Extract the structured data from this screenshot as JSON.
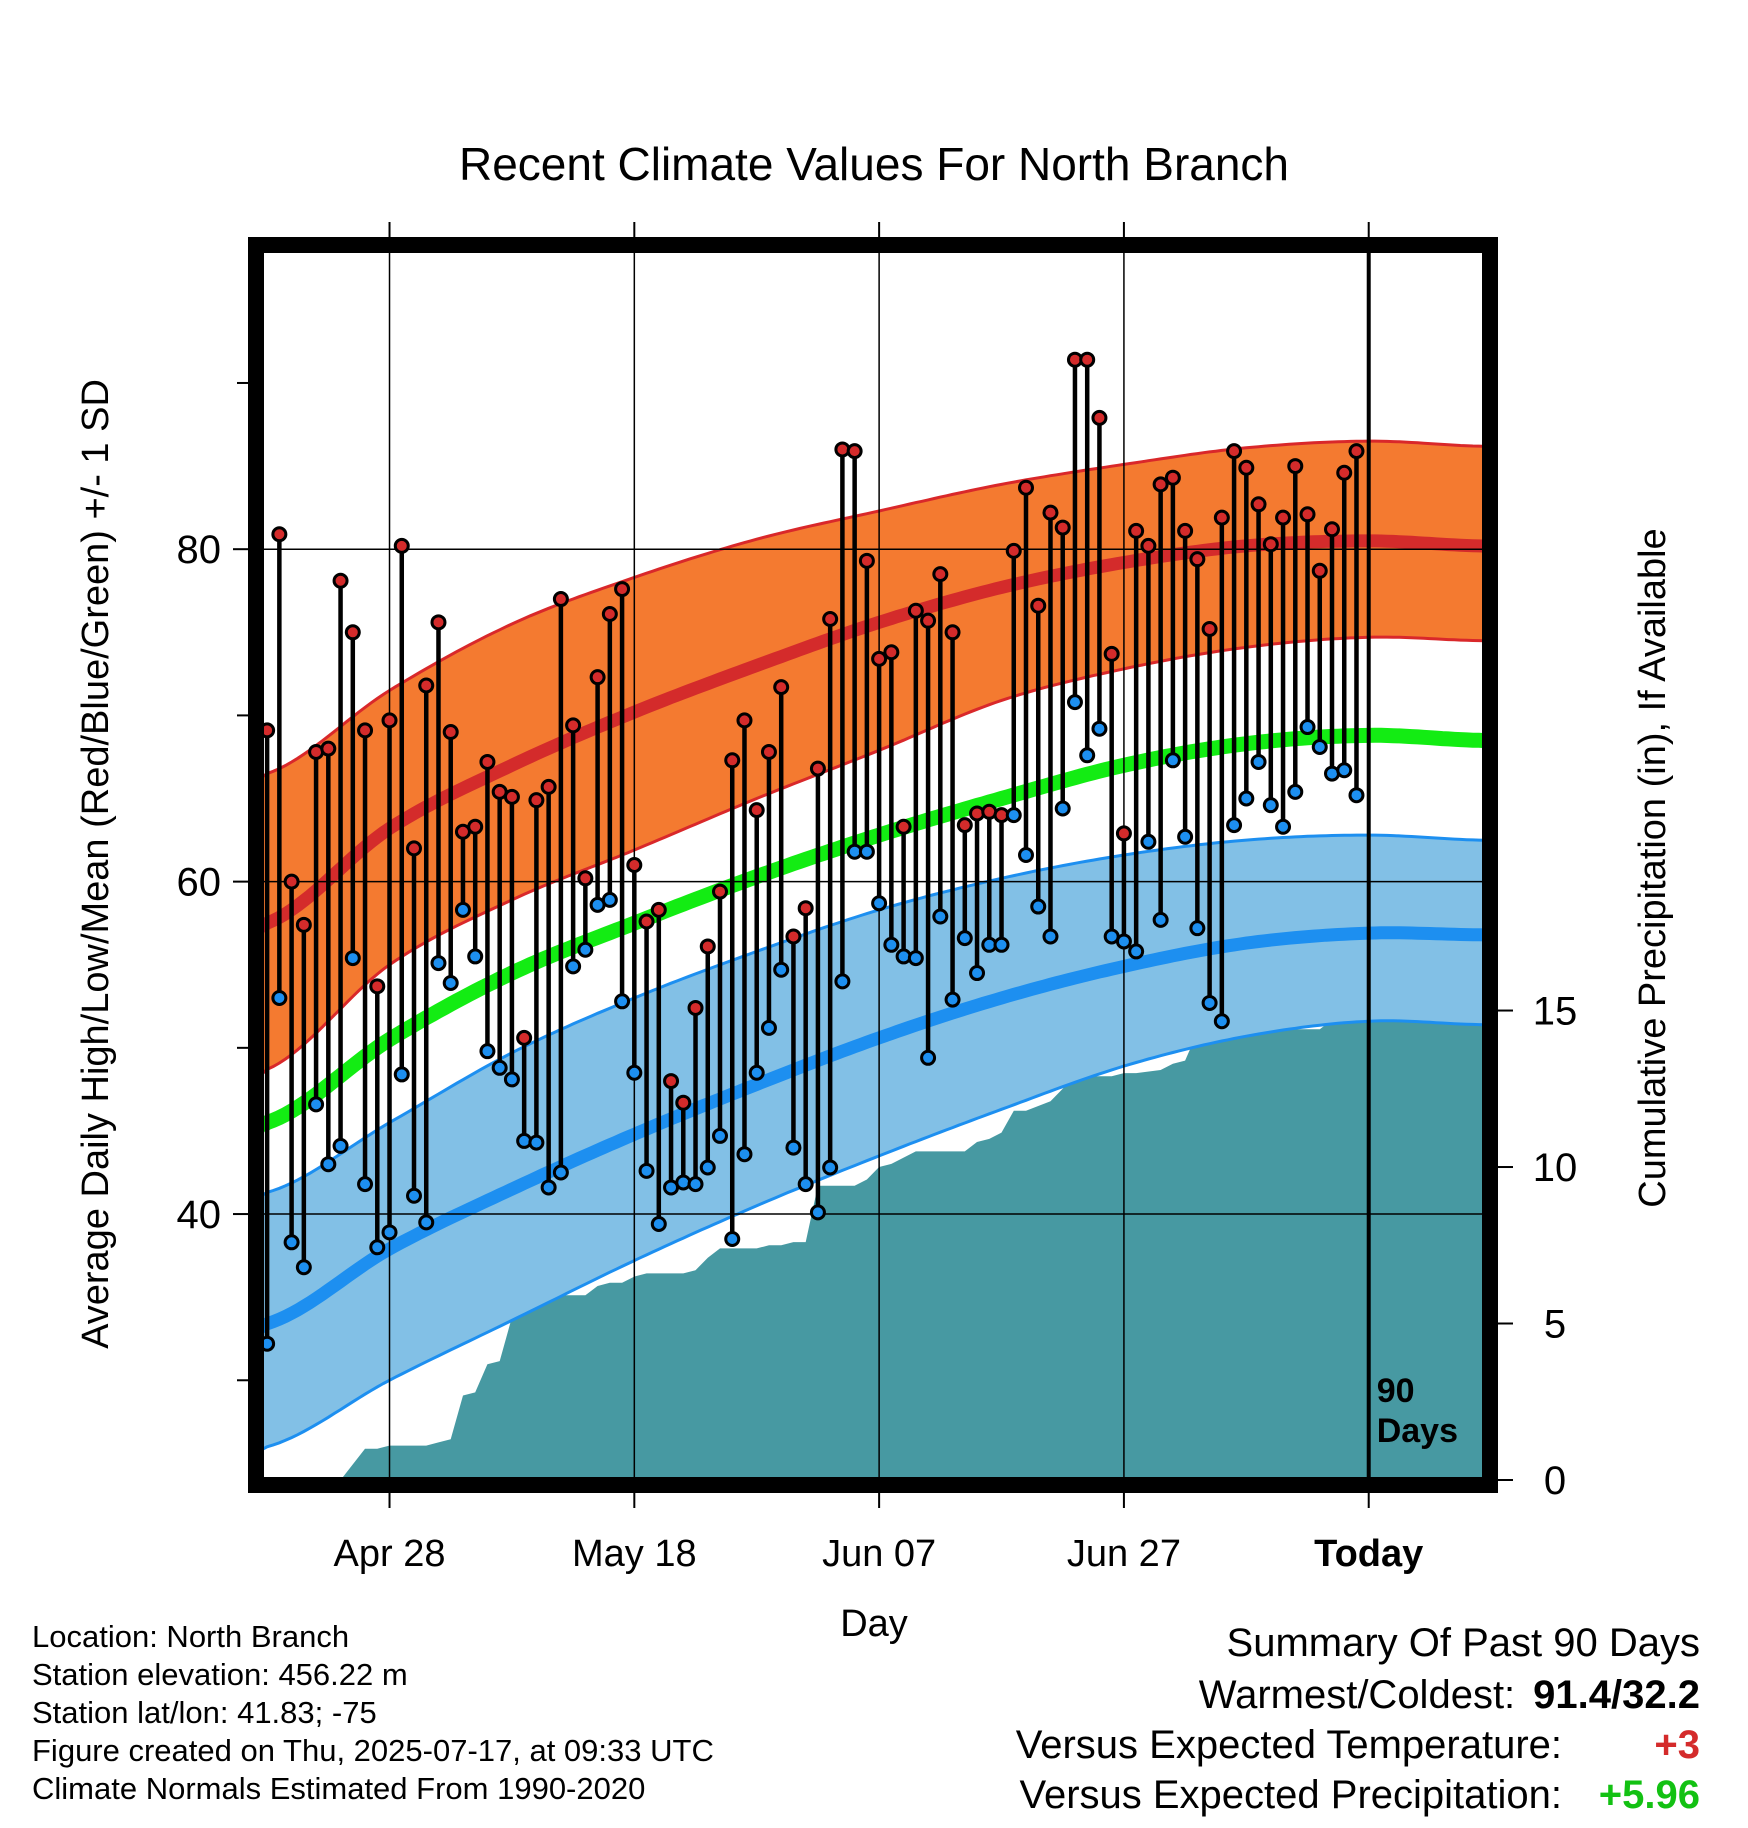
{
  "chart_data": {
    "type": "line",
    "title": "Recent Climate Values For North Branch",
    "xlabel": "Day",
    "ylabel": "Average Daily High/Low/Mean (Red/Blue/Green) +/- 1 SD",
    "ylabel2": "Cumulative Precipitation (in), If Available",
    "x_tick_labels": [
      "Apr 28",
      "May 18",
      "Jun 07",
      "Jun 27",
      "Today"
    ],
    "x_tick_day_index": [
      10,
      30,
      50,
      70,
      90
    ],
    "x_range_days": [
      -0.5,
      99.5
    ],
    "ylim": [
      24,
      98
    ],
    "y_major_ticks": [
      40,
      60,
      80
    ],
    "y_minor_ticks": [
      30,
      50,
      70,
      90
    ],
    "y2lim": [
      0,
      39.3
    ],
    "y2_ticks": [
      0,
      5,
      10,
      15
    ],
    "window_label": "90 Days",
    "today_index": 90,
    "grid": true,
    "colors": {
      "high_band": "#f47a30",
      "high_band_edge": "#d9282a",
      "high_mean": "#d42b2b",
      "low_band": "#82c0e6",
      "low_band_edge": "#1d8ff0",
      "low_mean": "#1d8ff0",
      "mean_line": "#13ec13",
      "precip": "#4799a2",
      "stem": "#000000",
      "high_point": "#d42b2b",
      "low_point": "#1d8ff0",
      "frame": "#000000"
    },
    "normals": {
      "days": [
        0,
        10,
        20,
        30,
        40,
        50,
        60,
        70,
        80,
        90,
        99
      ],
      "high_mean": [
        57.5,
        63.2,
        67.0,
        70.2,
        73.0,
        75.6,
        77.7,
        79.2,
        80.2,
        80.5,
        80.2
      ],
      "high_sd_upper": [
        66.5,
        71.5,
        75.5,
        78.3,
        80.6,
        82.3,
        83.9,
        85.1,
        86.1,
        86.5,
        86.2
      ],
      "high_sd_lower": [
        48.7,
        55.0,
        58.9,
        61.9,
        65.0,
        67.9,
        70.9,
        72.8,
        74.1,
        74.7,
        74.5
      ],
      "mean_line": [
        45.5,
        50.5,
        54.5,
        57.5,
        60.3,
        62.8,
        65.0,
        67.0,
        68.3,
        68.8,
        68.5
      ],
      "low_mean": [
        33.4,
        37.9,
        41.5,
        44.8,
        47.8,
        50.6,
        53.0,
        54.9,
        56.3,
        56.9,
        56.8
      ],
      "low_sd_upper": [
        41.3,
        45.5,
        49.7,
        53.0,
        55.8,
        58.3,
        60.2,
        61.6,
        62.5,
        62.8,
        62.5
      ],
      "low_sd_lower": [
        26.0,
        30.0,
        33.6,
        37.2,
        40.5,
        43.5,
        46.3,
        48.9,
        50.7,
        51.6,
        51.4
      ]
    },
    "series": [
      {
        "name": "High",
        "values": [
          69.1,
          80.9,
          60.0,
          57.4,
          67.8,
          68.0,
          78.1,
          75.0,
          69.1,
          53.7,
          69.7,
          80.2,
          62.0,
          71.8,
          75.6,
          69.0,
          63.0,
          63.3,
          67.2,
          65.4,
          65.1,
          50.6,
          64.9,
          65.7,
          77.0,
          69.4,
          60.2,
          72.3,
          76.1,
          77.6,
          61.0,
          57.6,
          58.3,
          48.0,
          46.7,
          52.4,
          56.1,
          59.4,
          67.3,
          69.7,
          64.3,
          67.8,
          71.7,
          56.7,
          58.4,
          66.8,
          75.8,
          86.0,
          85.9,
          79.3,
          73.4,
          73.8,
          63.3,
          76.3,
          75.7,
          78.5,
          75.0,
          63.4,
          64.1,
          64.2,
          64.0,
          79.9,
          83.7,
          76.6,
          82.2,
          81.3,
          91.4,
          91.4,
          87.9,
          73.7,
          62.9,
          81.1,
          80.2,
          83.9,
          84.3,
          81.1,
          79.4,
          75.2,
          81.9,
          85.9,
          84.9,
          82.7,
          80.3,
          81.9,
          85.0,
          82.1,
          78.7,
          81.2,
          84.6,
          85.9
        ]
      },
      {
        "name": "Low",
        "values": [
          32.2,
          53.0,
          38.3,
          36.8,
          46.6,
          43.0,
          44.1,
          55.4,
          41.8,
          38.0,
          38.9,
          48.4,
          41.1,
          39.5,
          55.1,
          53.9,
          58.3,
          55.5,
          49.8,
          48.8,
          48.1,
          44.4,
          44.3,
          41.6,
          42.5,
          54.9,
          55.9,
          58.6,
          58.9,
          52.8,
          48.5,
          42.6,
          39.4,
          41.6,
          41.9,
          41.8,
          42.8,
          44.7,
          38.5,
          43.6,
          48.5,
          51.2,
          54.7,
          44.0,
          41.8,
          40.1,
          42.8,
          54.0,
          61.8,
          61.8,
          58.7,
          56.2,
          55.5,
          55.4,
          49.4,
          57.9,
          52.9,
          56.6,
          54.5,
          56.2,
          56.2,
          64.0,
          61.6,
          58.5,
          56.7,
          64.4,
          70.8,
          67.6,
          69.2,
          56.7,
          56.4,
          55.8,
          62.4,
          57.7,
          67.3,
          62.7,
          57.2,
          52.7,
          51.6,
          63.4,
          65.0,
          67.2,
          64.6,
          63.3,
          65.4,
          69.3,
          68.1,
          66.5,
          66.7,
          65.2
        ]
      }
    ],
    "precip_cumulative": {
      "days": [
        -0.5,
        6,
        7,
        8,
        9,
        10,
        13,
        14,
        15,
        16,
        17,
        18,
        19,
        20,
        21,
        22,
        23,
        26,
        27,
        28,
        29,
        30,
        31,
        32,
        33,
        34,
        35,
        36,
        37,
        40,
        41,
        42,
        43,
        44,
        45,
        47,
        48,
        49,
        50,
        51,
        52,
        53,
        54,
        57,
        58,
        59,
        60,
        61,
        62,
        64,
        65,
        66,
        69,
        70,
        71,
        73,
        74,
        75,
        76,
        77,
        82,
        83,
        86,
        87,
        88,
        89,
        90,
        99.5
      ],
      "values": [
        0,
        0,
        0.5,
        1.0,
        1.0,
        1.1,
        1.1,
        1.2,
        1.3,
        2.7,
        2.8,
        3.7,
        3.8,
        5.2,
        5.8,
        5.9,
        5.9,
        5.9,
        6.2,
        6.3,
        6.3,
        6.5,
        6.6,
        6.6,
        6.6,
        6.6,
        6.7,
        7.1,
        7.4,
        7.4,
        7.5,
        7.5,
        7.6,
        7.6,
        9.4,
        9.4,
        9.4,
        9.6,
        10.0,
        10.1,
        10.3,
        10.5,
        10.5,
        10.5,
        10.8,
        10.9,
        11.1,
        11.8,
        11.8,
        12.1,
        12.5,
        12.9,
        12.9,
        13.0,
        13.0,
        13.1,
        13.3,
        13.4,
        14.3,
        14.3,
        14.3,
        14.4,
        14.4,
        14.7,
        15.0,
        17.4,
        18.4,
        18.4
      ]
    }
  },
  "footer": {
    "location": "Location: North Branch",
    "elevation": "Station elevation: 456.22 m",
    "latlon": "Station lat/lon: 41.83; -75",
    "created": "Figure created on Thu, 2025-07-17, at 09:33 UTC",
    "normals": "Climate Normals Estimated From 1990-2020"
  },
  "summary": {
    "heading": "Summary Of Past 90 Days",
    "warm_cold_label": "Warmest/Coldest:",
    "warm_cold_value": "91.4/32.2",
    "temp_label": "Versus Expected Temperature:",
    "temp_value": "+3",
    "precip_label": "Versus Expected Precipitation:",
    "precip_value": "+5.96",
    "temp_color": "#d42b2b",
    "precip_color": "#13c113"
  }
}
